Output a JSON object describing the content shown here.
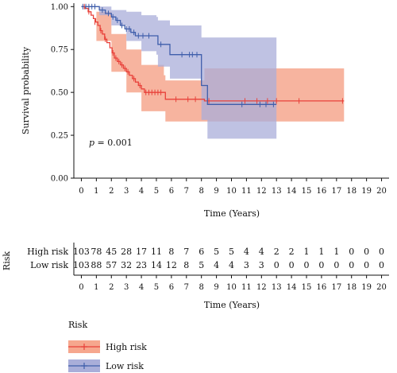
{
  "chart_data": {
    "type": "line",
    "subtype": "kaplan-meier",
    "title": "",
    "xlabel": "Time (Years)",
    "ylabel": "Survival probability",
    "xlim": [
      -0.5,
      20.5
    ],
    "ylim": [
      0,
      1.02
    ],
    "x_ticks": [
      0,
      1,
      2,
      3,
      4,
      5,
      6,
      7,
      8,
      9,
      10,
      11,
      12,
      13,
      14,
      15,
      16,
      17,
      18,
      19,
      20
    ],
    "y_ticks": [
      "0.00",
      "0.25",
      "0.50",
      "0.75",
      "1.00"
    ],
    "y_tick_values": [
      0,
      0.25,
      0.5,
      0.75,
      1.0
    ],
    "grid": false,
    "annotation": {
      "italic": "p",
      "text": " = 0.001",
      "x": 0.3,
      "y": 0.3
    },
    "series": [
      {
        "name": "High risk",
        "color": "#e8413a",
        "ci_color": "#f6a78e",
        "steps": [
          [
            0,
            1.0
          ],
          [
            0.25,
            0.99
          ],
          [
            0.45,
            0.97
          ],
          [
            0.65,
            0.95
          ],
          [
            0.8,
            0.93
          ],
          [
            0.95,
            0.91
          ],
          [
            1.1,
            0.89
          ],
          [
            1.25,
            0.86
          ],
          [
            1.4,
            0.84
          ],
          [
            1.55,
            0.81
          ],
          [
            1.7,
            0.79
          ],
          [
            1.9,
            0.76
          ],
          [
            2.05,
            0.73
          ],
          [
            2.2,
            0.7
          ],
          [
            2.4,
            0.68
          ],
          [
            2.6,
            0.66
          ],
          [
            2.8,
            0.64
          ],
          [
            3.0,
            0.62
          ],
          [
            3.2,
            0.6
          ],
          [
            3.4,
            0.58
          ],
          [
            3.6,
            0.56
          ],
          [
            3.8,
            0.54
          ],
          [
            4.0,
            0.52
          ],
          [
            4.2,
            0.5
          ],
          [
            5.5,
            0.5
          ],
          [
            5.6,
            0.46
          ],
          [
            8.1,
            0.46
          ],
          [
            8.2,
            0.45
          ],
          [
            17.5,
            0.45
          ]
        ],
        "ci_upper": [
          [
            0,
            1.0
          ],
          [
            1,
            0.97
          ],
          [
            2,
            0.84
          ],
          [
            3,
            0.75
          ],
          [
            4,
            0.66
          ],
          [
            5.5,
            0.6
          ],
          [
            5.6,
            0.57
          ],
          [
            8.1,
            0.57
          ],
          [
            8.2,
            0.64
          ],
          [
            17.5,
            0.64
          ]
        ],
        "ci_lower": [
          [
            0,
            1.0
          ],
          [
            1,
            0.8
          ],
          [
            2,
            0.62
          ],
          [
            3,
            0.5
          ],
          [
            4,
            0.39
          ],
          [
            5.5,
            0.39
          ],
          [
            5.6,
            0.33
          ],
          [
            17.5,
            0.33
          ]
        ],
        "censored": [
          [
            0.2,
            1.0
          ],
          [
            0.5,
            0.97
          ],
          [
            0.9,
            0.91
          ],
          [
            1.3,
            0.86
          ],
          [
            1.6,
            0.81
          ],
          [
            2.1,
            0.73
          ],
          [
            2.3,
            0.7
          ],
          [
            2.5,
            0.68
          ],
          [
            2.7,
            0.66
          ],
          [
            2.9,
            0.64
          ],
          [
            3.1,
            0.62
          ],
          [
            3.5,
            0.58
          ],
          [
            3.9,
            0.54
          ],
          [
            4.3,
            0.5
          ],
          [
            4.5,
            0.5
          ],
          [
            4.7,
            0.5
          ],
          [
            4.9,
            0.5
          ],
          [
            5.1,
            0.5
          ],
          [
            5.3,
            0.5
          ],
          [
            6.3,
            0.46
          ],
          [
            7.1,
            0.46
          ],
          [
            7.6,
            0.46
          ],
          [
            8.5,
            0.45
          ],
          [
            10.9,
            0.45
          ],
          [
            11.7,
            0.45
          ],
          [
            12.4,
            0.45
          ],
          [
            13.0,
            0.45
          ],
          [
            14.5,
            0.45
          ],
          [
            17.4,
            0.45
          ]
        ]
      },
      {
        "name": "Low risk",
        "color": "#3f5eab",
        "ci_color": "#a9aed9",
        "steps": [
          [
            0,
            1.0
          ],
          [
            1.2,
            0.98
          ],
          [
            1.6,
            0.96
          ],
          [
            2.0,
            0.94
          ],
          [
            2.3,
            0.92
          ],
          [
            2.6,
            0.89
          ],
          [
            2.9,
            0.87
          ],
          [
            3.3,
            0.85
          ],
          [
            3.6,
            0.83
          ],
          [
            5.0,
            0.83
          ],
          [
            5.1,
            0.78
          ],
          [
            5.8,
            0.78
          ],
          [
            5.9,
            0.72
          ],
          [
            7.9,
            0.72
          ],
          [
            8.0,
            0.54
          ],
          [
            8.3,
            0.54
          ],
          [
            8.4,
            0.43
          ],
          [
            13.0,
            0.43
          ]
        ],
        "ci_upper": [
          [
            0,
            1.0
          ],
          [
            1.2,
            1.0
          ],
          [
            2.0,
            0.98
          ],
          [
            3.0,
            0.97
          ],
          [
            4.0,
            0.95
          ],
          [
            5.0,
            0.94
          ],
          [
            5.1,
            0.92
          ],
          [
            5.9,
            0.89
          ],
          [
            7.9,
            0.89
          ],
          [
            8.0,
            0.82
          ],
          [
            13.0,
            0.82
          ]
        ],
        "ci_lower": [
          [
            0,
            1.0
          ],
          [
            1.2,
            0.95
          ],
          [
            2.0,
            0.89
          ],
          [
            3.0,
            0.8
          ],
          [
            4.0,
            0.74
          ],
          [
            5.0,
            0.72
          ],
          [
            5.1,
            0.65
          ],
          [
            5.9,
            0.58
          ],
          [
            7.9,
            0.58
          ],
          [
            8.0,
            0.34
          ],
          [
            8.4,
            0.23
          ],
          [
            13.0,
            0.23
          ]
        ],
        "censored": [
          [
            0.1,
            1.0
          ],
          [
            0.3,
            1.0
          ],
          [
            0.5,
            1.0
          ],
          [
            0.7,
            1.0
          ],
          [
            0.9,
            1.0
          ],
          [
            1.4,
            0.98
          ],
          [
            1.8,
            0.96
          ],
          [
            2.1,
            0.94
          ],
          [
            2.4,
            0.92
          ],
          [
            2.7,
            0.89
          ],
          [
            3.0,
            0.87
          ],
          [
            3.2,
            0.87
          ],
          [
            3.5,
            0.85
          ],
          [
            3.8,
            0.83
          ],
          [
            4.1,
            0.83
          ],
          [
            4.5,
            0.83
          ],
          [
            5.3,
            0.78
          ],
          [
            6.7,
            0.72
          ],
          [
            7.2,
            0.72
          ],
          [
            7.4,
            0.72
          ],
          [
            7.7,
            0.72
          ],
          [
            10.7,
            0.43
          ],
          [
            11.9,
            0.43
          ],
          [
            12.3,
            0.43
          ],
          [
            12.8,
            0.43
          ]
        ]
      }
    ]
  },
  "risk_table": {
    "title": "Risk",
    "xlabel": "Time (Years)",
    "x_ticks": [
      0,
      1,
      2,
      3,
      4,
      5,
      6,
      7,
      8,
      9,
      10,
      11,
      12,
      13,
      14,
      15,
      16,
      17,
      18,
      19,
      20
    ],
    "rows": [
      {
        "label": "High risk",
        "counts": [
          103,
          78,
          45,
          28,
          17,
          11,
          8,
          7,
          6,
          5,
          5,
          4,
          4,
          2,
          2,
          1,
          1,
          1,
          0,
          0,
          0
        ]
      },
      {
        "label": "Low risk",
        "counts": [
          103,
          88,
          57,
          32,
          23,
          14,
          12,
          8,
          5,
          4,
          4,
          3,
          3,
          0,
          0,
          0,
          0,
          0,
          0,
          0,
          0
        ]
      }
    ]
  },
  "legend": {
    "title": "Risk",
    "items": [
      {
        "label": "High risk",
        "color": "#e8413a",
        "ci_color": "#f6a78e"
      },
      {
        "label": "Low risk",
        "color": "#3f5eab",
        "ci_color": "#a9aed9"
      }
    ]
  }
}
